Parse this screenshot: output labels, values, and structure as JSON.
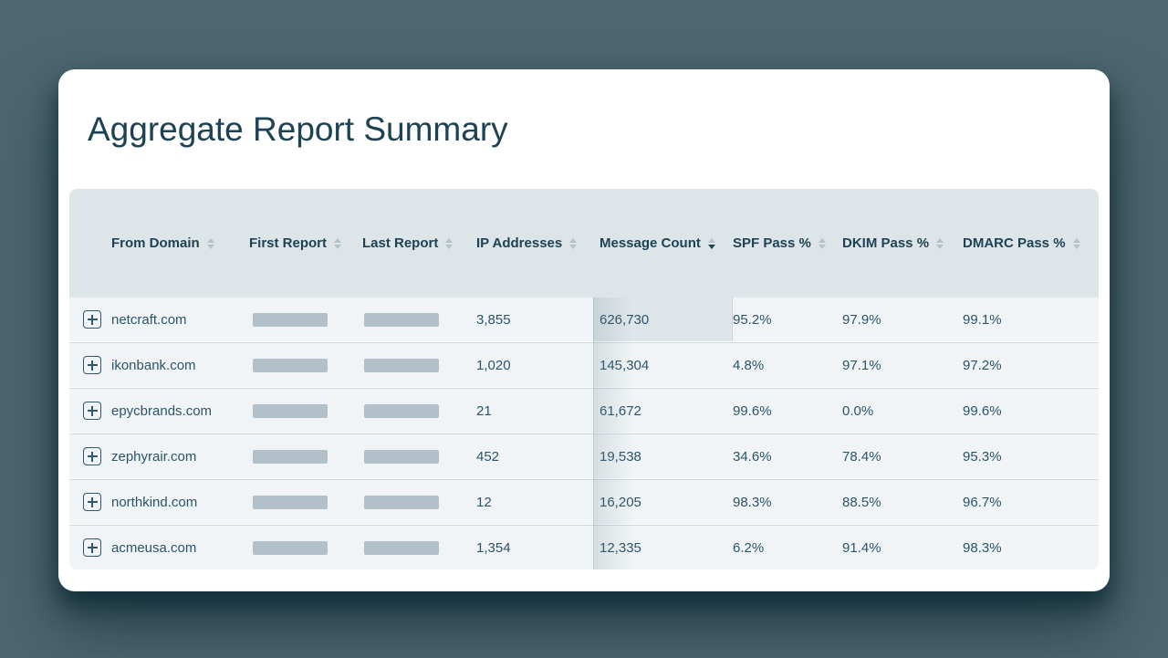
{
  "title": "Aggregate Report Summary",
  "colors": {
    "page_background": "#4d666f",
    "card_background": "#ffffff",
    "table_header_background": "#dee5e9",
    "row_background": "#f0f4f6",
    "heading_text": "#1c4254",
    "body_text": "#2b5468",
    "redacted_bar": "#b2c1c9",
    "sort_icon_inactive": "#b4c3cb",
    "sort_icon_active": "#1d4355"
  },
  "table": {
    "columns": [
      {
        "key": "from_domain",
        "label": "From Domain",
        "sort": "none"
      },
      {
        "key": "first_report",
        "label": "First Report",
        "sort": "none",
        "redacted": true
      },
      {
        "key": "last_report",
        "label": "Last Report",
        "sort": "none",
        "redacted": true
      },
      {
        "key": "ip_addresses",
        "label": "IP Addresses",
        "sort": "none"
      },
      {
        "key": "message_count",
        "label": "Message Count",
        "sort": "desc"
      },
      {
        "key": "spf_pass",
        "label": "SPF Pass %",
        "sort": "none"
      },
      {
        "key": "dkim_pass",
        "label": "DKIM Pass %",
        "sort": "none"
      },
      {
        "key": "dmarc_pass",
        "label": "DMARC Pass %",
        "sort": "none"
      }
    ],
    "expand_icon": "plus",
    "rows": [
      {
        "domain": "netcraft.com",
        "ip_addresses": "3,855",
        "message_count": "626,730",
        "spf_pass": "95.2%",
        "dkim_pass": "97.9%",
        "dmarc_pass": "99.1%",
        "message_count_highlighted": true
      },
      {
        "domain": "ikonbank.com",
        "ip_addresses": "1,020",
        "message_count": "145,304",
        "spf_pass": "4.8%",
        "dkim_pass": "97.1%",
        "dmarc_pass": "97.2%",
        "message_count_highlighted": false
      },
      {
        "domain": "epycbrands.com",
        "ip_addresses": "21",
        "message_count": "61,672",
        "spf_pass": "99.6%",
        "dkim_pass": "0.0%",
        "dmarc_pass": "99.6%",
        "message_count_highlighted": false
      },
      {
        "domain": "zephyrair.com",
        "ip_addresses": "452",
        "message_count": "19,538",
        "spf_pass": "34.6%",
        "dkim_pass": "78.4%",
        "dmarc_pass": "95.3%",
        "message_count_highlighted": false
      },
      {
        "domain": "northkind.com",
        "ip_addresses": "12",
        "message_count": "16,205",
        "spf_pass": "98.3%",
        "dkim_pass": "88.5%",
        "dmarc_pass": "96.7%",
        "message_count_highlighted": false
      },
      {
        "domain": "acmeusa.com",
        "ip_addresses": "1,354",
        "message_count": "12,335",
        "spf_pass": "6.2%",
        "dkim_pass": "91.4%",
        "dmarc_pass": "98.3%",
        "message_count_highlighted": false
      }
    ]
  }
}
